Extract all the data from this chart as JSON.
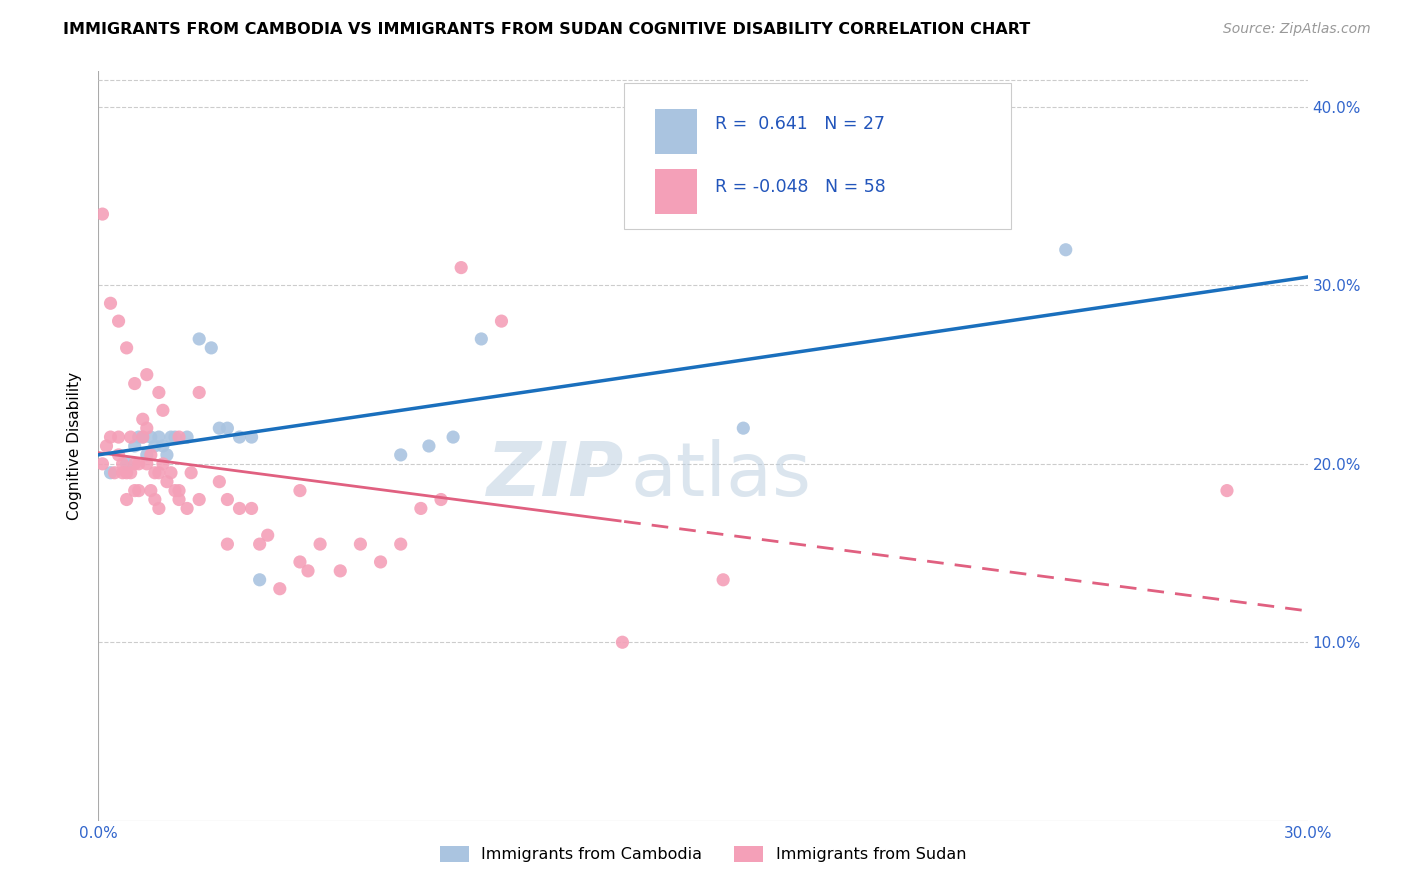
{
  "title": "IMMIGRANTS FROM CAMBODIA VS IMMIGRANTS FROM SUDAN COGNITIVE DISABILITY CORRELATION CHART",
  "source": "Source: ZipAtlas.com",
  "ylabel_label": "Cognitive Disability",
  "x_min": 0.0,
  "x_max": 0.3,
  "y_min": 0.0,
  "y_max": 0.42,
  "x_ticks": [
    0.0,
    0.05,
    0.1,
    0.15,
    0.2,
    0.25,
    0.3
  ],
  "x_tick_labels": [
    "0.0%",
    "",
    "",
    "",
    "",
    "",
    "30.0%"
  ],
  "y_ticks": [
    0.1,
    0.2,
    0.3,
    0.4
  ],
  "y_tick_labels": [
    "10.0%",
    "20.0%",
    "30.0%",
    "40.0%"
  ],
  "cambodia_color": "#aac4e0",
  "sudan_color": "#f4a0b8",
  "cambodia_line_color": "#1a6fbd",
  "sudan_line_color": "#e06080",
  "r_cambodia": 0.641,
  "n_cambodia": 27,
  "r_sudan": -0.048,
  "n_sudan": 58,
  "watermark_zip": "ZIP",
  "watermark_atlas": "atlas",
  "cambodia_x": [
    0.003,
    0.007,
    0.009,
    0.01,
    0.011,
    0.012,
    0.013,
    0.014,
    0.015,
    0.016,
    0.017,
    0.018,
    0.019,
    0.022,
    0.025,
    0.028,
    0.03,
    0.032,
    0.035,
    0.038,
    0.04,
    0.075,
    0.082,
    0.088,
    0.095,
    0.16,
    0.24
  ],
  "cambodia_y": [
    0.195,
    0.2,
    0.21,
    0.215,
    0.215,
    0.205,
    0.215,
    0.21,
    0.215,
    0.21,
    0.205,
    0.215,
    0.215,
    0.215,
    0.27,
    0.265,
    0.22,
    0.22,
    0.215,
    0.215,
    0.135,
    0.205,
    0.21,
    0.215,
    0.27,
    0.22,
    0.32
  ],
  "sudan_x": [
    0.001,
    0.002,
    0.003,
    0.004,
    0.005,
    0.005,
    0.006,
    0.006,
    0.007,
    0.007,
    0.008,
    0.008,
    0.009,
    0.009,
    0.01,
    0.01,
    0.011,
    0.011,
    0.012,
    0.012,
    0.013,
    0.013,
    0.014,
    0.014,
    0.015,
    0.015,
    0.016,
    0.016,
    0.017,
    0.018,
    0.019,
    0.02,
    0.02,
    0.022,
    0.023,
    0.025,
    0.025,
    0.03,
    0.032,
    0.035,
    0.038,
    0.04,
    0.042,
    0.045,
    0.05,
    0.052,
    0.055,
    0.06,
    0.065,
    0.07,
    0.075,
    0.08,
    0.085,
    0.09,
    0.1,
    0.13,
    0.155,
    0.28
  ],
  "sudan_y": [
    0.2,
    0.21,
    0.215,
    0.195,
    0.215,
    0.205,
    0.195,
    0.2,
    0.18,
    0.195,
    0.195,
    0.215,
    0.185,
    0.2,
    0.185,
    0.2,
    0.215,
    0.225,
    0.2,
    0.22,
    0.185,
    0.205,
    0.18,
    0.195,
    0.175,
    0.195,
    0.2,
    0.23,
    0.19,
    0.195,
    0.185,
    0.185,
    0.215,
    0.175,
    0.195,
    0.18,
    0.24,
    0.19,
    0.18,
    0.175,
    0.175,
    0.155,
    0.16,
    0.13,
    0.185,
    0.14,
    0.155,
    0.14,
    0.155,
    0.145,
    0.155,
    0.175,
    0.18,
    0.31,
    0.28,
    0.1,
    0.135,
    0.185
  ],
  "sudan_x_extra": [
    0.001,
    0.003,
    0.005,
    0.007,
    0.009,
    0.012,
    0.015,
    0.02,
    0.032,
    0.05
  ],
  "sudan_y_extra": [
    0.34,
    0.29,
    0.28,
    0.265,
    0.245,
    0.25,
    0.24,
    0.18,
    0.155,
    0.145
  ]
}
